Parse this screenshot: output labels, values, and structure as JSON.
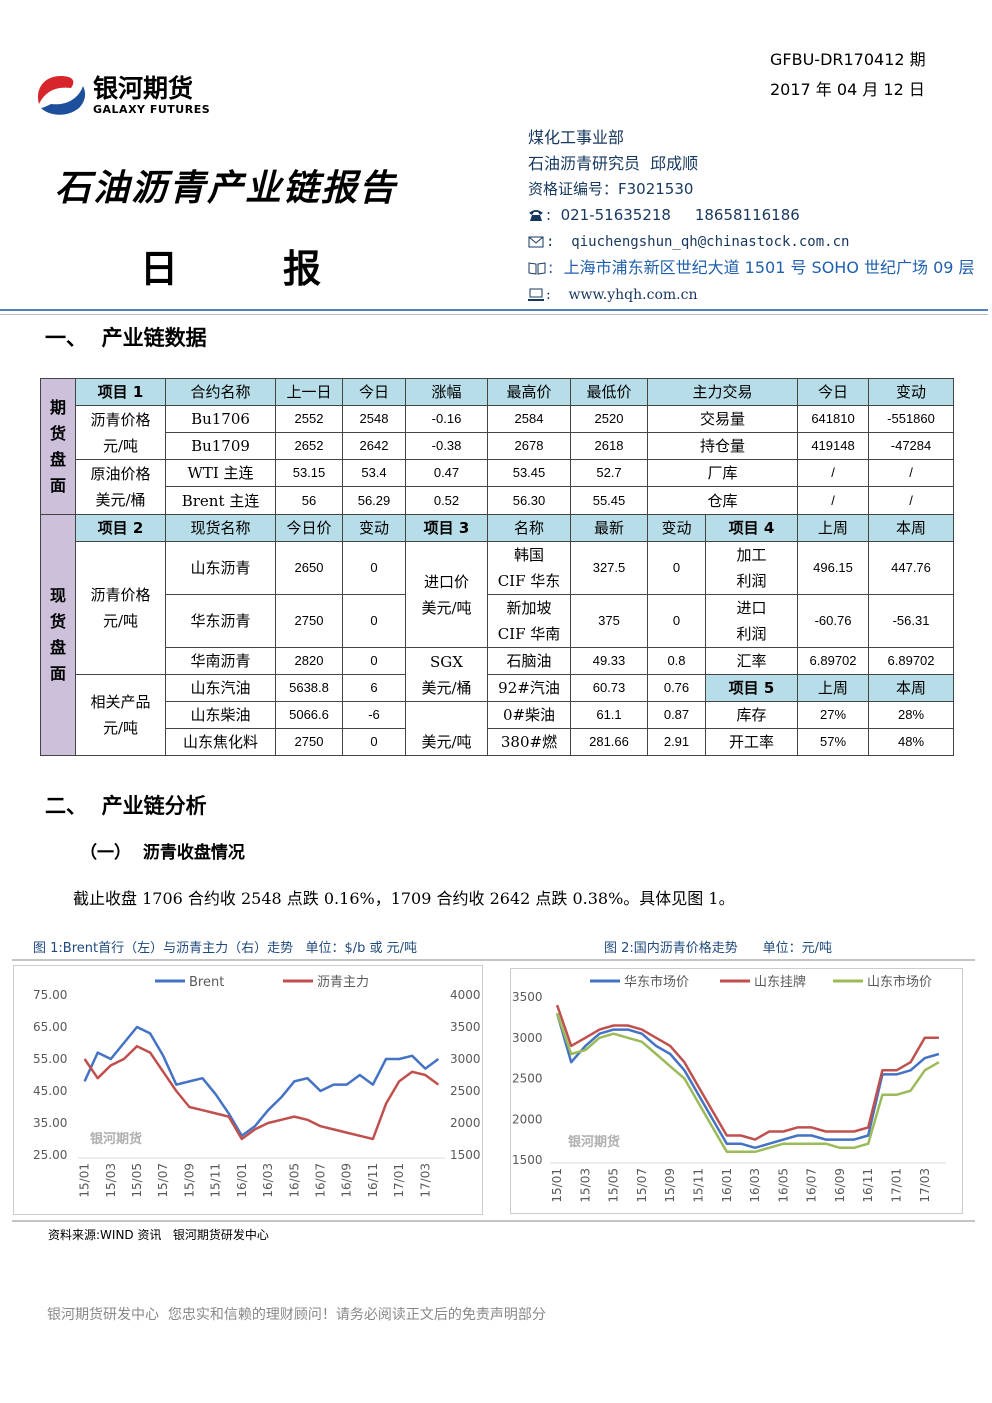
{
  "header": {
    "code": "GFBU-DR170412 期",
    "date": "2017 年 04 月 12 日",
    "logo_cn": "银河期货",
    "logo_en": "GALAXY FUTURES",
    "title": "石油沥青产业链报告",
    "subtitle": [
      "日",
      "报"
    ]
  },
  "contact": {
    "dept": "煤化工事业部",
    "analyst": "石油沥青研究员  邱成顺",
    "cert": "资格证编号：F3021530",
    "phone": ":  021-51635218     18658116186",
    "email": ":  qiuchengshun_qh@chinastock.com.cn",
    "address": ":  上海市浦东新区世纪大道 1501 号 SOHO 世纪广场 09 层",
    "web": ":    www.yhqh.com.cn"
  },
  "section1": "一、  产业链数据",
  "futures": {
    "side": "期货盘面",
    "header": [
      "项目 1",
      "合约名称",
      "上一日",
      "今日",
      "涨幅",
      "最高价",
      "最低价",
      "主力交易",
      "今日",
      "变动"
    ],
    "rows": [
      [
        [
          "沥青价格",
          "元/吨"
        ],
        "Bu1706",
        "2552",
        "2548",
        "-0.16",
        "2584",
        "2520",
        "交易量",
        "641810",
        "-551860"
      ],
      [
        "Bu1709",
        "2652",
        "2642",
        "-0.38",
        "2678",
        "2618",
        "持仓量",
        "419148",
        "-47284"
      ],
      [
        [
          "原油价格",
          "美元/桶"
        ],
        "WTI 主连",
        "53.15",
        "53.4",
        "0.47",
        "53.45",
        "52.7",
        "厂库",
        "/",
        "/"
      ],
      [
        "Brent 主连",
        "56",
        "56.29",
        "0.52",
        "56.30",
        "55.45",
        "仓库",
        "/",
        "/"
      ]
    ]
  },
  "spot": {
    "side": "现货盘面",
    "header": [
      "项目 2",
      "现货名称",
      "今日价",
      "变动",
      "项目 3",
      "名称",
      "最新",
      "变动",
      "项目 4",
      "上周",
      "本周"
    ],
    "rows": [
      [
        [
          "沥青价格",
          "元/吨"
        ],
        "山东沥青",
        "2650",
        "0",
        [
          "进口价",
          "美元/吨"
        ],
        [
          "韩国",
          "CIF 华东"
        ],
        "327.5",
        "0",
        [
          "加工",
          "利润"
        ],
        "496.15",
        "447.76"
      ],
      [
        "华东沥青",
        "2750",
        "0",
        [
          "新加坡",
          "CIF 华南"
        ],
        "375",
        "0",
        [
          "进口",
          "利润"
        ],
        "-60.76",
        "-56.31"
      ],
      [
        "华南沥青",
        "2820",
        "0",
        [
          "SGX",
          "美元/桶"
        ],
        "石脑油",
        "49.33",
        "0.8",
        "汇率",
        "6.89702",
        "6.89702"
      ],
      [
        [
          "相关产品",
          "元/吨"
        ],
        "山东汽油",
        "5638.8",
        "6",
        "92#汽油",
        "60.73",
        "0.76",
        "项目 5",
        "上周",
        "本周"
      ],
      [
        "山东柴油",
        "5066.6",
        "-6",
        "美元/吨",
        "0#柴油",
        "61.1",
        "0.87",
        "库存",
        "27%",
        "28%"
      ],
      [
        "山东焦化料",
        "2750",
        "0",
        "380#燃",
        "281.66",
        "2.91",
        "开工率",
        "57%",
        "48%"
      ]
    ]
  },
  "section2": "二、  产业链分析",
  "subsection": "（一）  沥青收盘情况",
  "paragraph": "截止收盘 1706 合约收 2548 点跌 0.16%，1709 合约收 2642 点跌 0.38%。具体见图 1。",
  "chart_data": [
    {
      "type": "line",
      "title": "图 1:Brent首行（左）与沥青主力（右）走势   单位：$/b 或 元/吨",
      "watermark": "银河期货",
      "legend": "top",
      "categories": [
        "15/01",
        null,
        "15/03",
        null,
        "15/05",
        null,
        "15/07",
        null,
        "15/09",
        null,
        "15/11",
        null,
        "16/01",
        null,
        "16/03",
        null,
        "16/05",
        null,
        "16/07",
        null,
        "16/09",
        null,
        "16/11",
        null,
        "17/01",
        null,
        "17/03",
        null
      ],
      "ylim": [
        25,
        75
      ],
      "yticks": [
        {
          "value": 25,
          "label": "25.00"
        },
        {
          "value": 35,
          "label": "35.00"
        },
        {
          "value": 45,
          "label": "45.00"
        },
        {
          "value": 55,
          "label": "55.00"
        },
        {
          "value": 65,
          "label": "65.00"
        },
        {
          "value": 75,
          "label": "75.00"
        }
      ],
      "y2lim": [
        1500,
        4000
      ],
      "y2ticks": [
        1500,
        2000,
        2500,
        3000,
        3500,
        4000
      ],
      "series": [
        {
          "name": "Brent",
          "color": "#4472c4",
          "values": [
            48,
            57,
            55,
            60,
            65,
            63,
            56,
            47,
            48,
            49,
            44,
            38,
            31,
            34,
            39,
            43,
            48,
            49,
            45,
            47,
            47,
            50,
            47,
            55,
            55,
            56,
            52,
            55
          ]
        },
        {
          "name": "沥青主力",
          "color": "#c0504d",
          "axis": "y2",
          "values": [
            3000,
            2700,
            2900,
            3000,
            3200,
            3100,
            2800,
            2500,
            2250,
            2200,
            2150,
            2100,
            1750,
            1900,
            2000,
            2050,
            2100,
            2050,
            1950,
            1900,
            1850,
            1800,
            1750,
            2300,
            2650,
            2800,
            2750,
            2600
          ]
        }
      ]
    },
    {
      "type": "line",
      "title": "图 2:国内沥青价格走势      单位：元/吨",
      "watermark": "银河期货",
      "legend": "top",
      "categories": [
        "15/01",
        null,
        "15/03",
        null,
        "15/05",
        null,
        "15/07",
        null,
        "15/09",
        null,
        "15/11",
        null,
        "16/01",
        null,
        "16/03",
        null,
        "16/05",
        null,
        "16/07",
        null,
        "16/09",
        null,
        "16/11",
        null,
        "17/01",
        null,
        "17/03",
        null
      ],
      "ylim": [
        1500,
        3500
      ],
      "yticks": [
        1500,
        2000,
        2500,
        3000,
        3500
      ],
      "series": [
        {
          "name": "华东市场价",
          "color": "#4472c4",
          "values": [
            3300,
            2700,
            2900,
            3050,
            3100,
            3100,
            3050,
            2900,
            2800,
            2600,
            2300,
            2000,
            1700,
            1700,
            1650,
            1700,
            1750,
            1800,
            1800,
            1750,
            1750,
            1750,
            1800,
            2550,
            2550,
            2600,
            2750,
            2800
          ]
        },
        {
          "name": "山东挂牌",
          "color": "#c0504d",
          "values": [
            3400,
            2900,
            3000,
            3100,
            3150,
            3150,
            3100,
            3000,
            2900,
            2700,
            2400,
            2100,
            1800,
            1800,
            1750,
            1850,
            1850,
            1900,
            1900,
            1850,
            1850,
            1850,
            1900,
            2600,
            2600,
            2700,
            3000,
            3000
          ]
        },
        {
          "name": "山东市场价",
          "color": "#9bbb59",
          "values": [
            3300,
            2800,
            2850,
            3000,
            3050,
            3000,
            2950,
            2800,
            2650,
            2500,
            2200,
            1900,
            1600,
            1600,
            1600,
            1650,
            1700,
            1700,
            1700,
            1700,
            1650,
            1650,
            1700,
            2300,
            2300,
            2350,
            2600,
            2700
          ]
        }
      ]
    }
  ],
  "source": "资料来源:WIND 资讯   银河期货研发中心",
  "footer": "银河期货研发中心  您忠实和信赖的理财顾问！请务必阅读正文后的免责声明部分"
}
